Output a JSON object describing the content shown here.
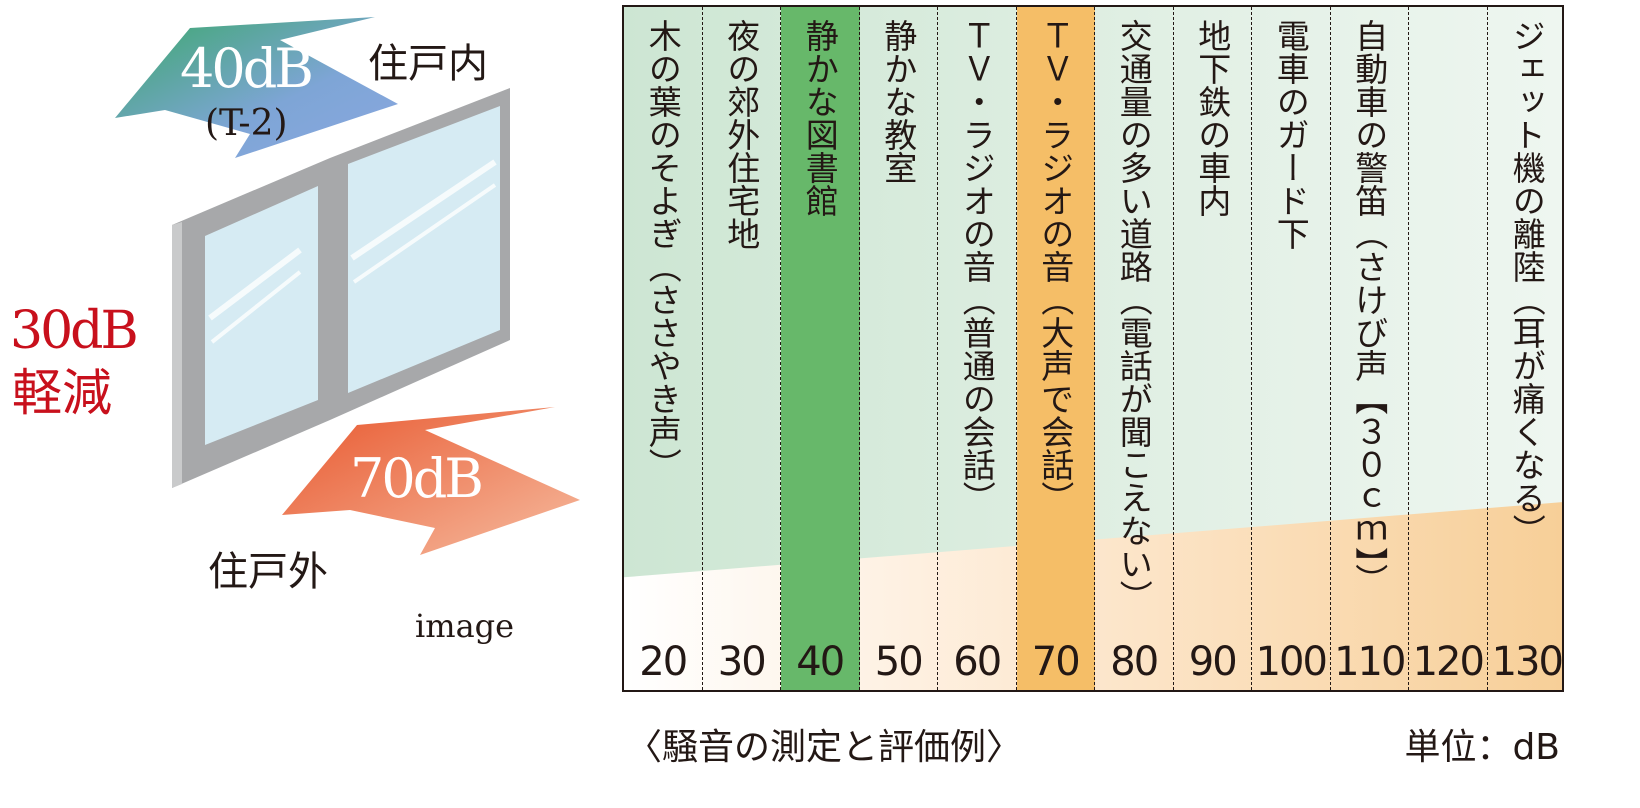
{
  "illustration": {
    "indoor_label": "住戸内",
    "outdoor_label": "住戸外",
    "indoor_level": "40dB",
    "indoor_rating": "(T-2)",
    "outdoor_level": "70dB",
    "reduction_value": "30dB",
    "reduction_label": "軽減",
    "image_note": "image",
    "colors": {
      "reduction": "#c8101c",
      "indoor_arrow": [
        "#3aa86a",
        "#86a6db"
      ],
      "outdoor_arrow": [
        "#e8572e",
        "#f3b08f"
      ]
    }
  },
  "scale": {
    "columns": [
      {
        "db": "20",
        "label": "木の葉のそよぎ（ささやき声）"
      },
      {
        "db": "30",
        "label": "夜の郊外住宅地"
      },
      {
        "db": "40",
        "label": "静かな図書館",
        "highlight": "green"
      },
      {
        "db": "50",
        "label": "静かな教室"
      },
      {
        "db": "60",
        "label": "ＴＶ・ラジオの音（普通の会話）"
      },
      {
        "db": "70",
        "label": "ＴＶ・ラジオの音（大声で会話）",
        "highlight": "orange"
      },
      {
        "db": "80",
        "label": "交通量の多い道路（電話が聞こえない）"
      },
      {
        "db": "90",
        "label": "地下鉄の車内"
      },
      {
        "db": "100",
        "label": "電車のガード下"
      },
      {
        "db": "110",
        "label": "自動車の警笛（さけび声【３０ｃｍ】）"
      },
      {
        "db": "120",
        "label": ""
      },
      {
        "db": "130",
        "label": "ジェット機の離陸（耳が痛くなる）"
      }
    ],
    "colors": {
      "highlight_green": "#67b86a",
      "highlight_orange": "#f5be67"
    },
    "caption": "〈騒音の測定と評価例〉",
    "unit": "単位：dB"
  }
}
